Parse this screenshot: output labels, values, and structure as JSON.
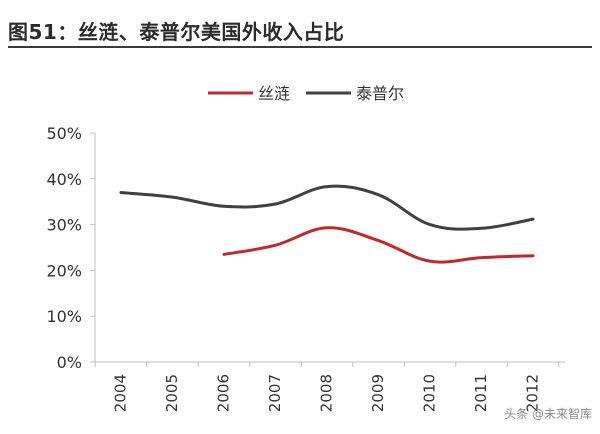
{
  "header": {
    "title": "图51：丝涟、泰普尔美国外收入占比"
  },
  "watermark": "头条 @未来智库",
  "chart_data": {
    "type": "line",
    "categories": [
      "2004",
      "2005",
      "2006",
      "2007",
      "2008",
      "2009",
      "2010",
      "2011",
      "2012"
    ],
    "ylim": [
      0,
      50
    ],
    "yticks": [
      "0%",
      "10%",
      "20%",
      "30%",
      "40%",
      "50%"
    ],
    "ytick_values": [
      0,
      10,
      20,
      30,
      40,
      50
    ],
    "legend_position": "top-center",
    "series": [
      {
        "name": "丝涟",
        "color": "#C0292B",
        "x": [
          2006.0,
          2007.0,
          2008.0,
          2009.0,
          2010.0,
          2011.0,
          2012.0
        ],
        "values": [
          23.5,
          25.5,
          29.3,
          26.5,
          22.0,
          22.8,
          23.2
        ]
      },
      {
        "name": "泰普尔",
        "color": "#404040",
        "x": [
          2004.0,
          2005.0,
          2006.0,
          2007.0,
          2008.0,
          2009.0,
          2010.0,
          2011.0,
          2012.0
        ],
        "values": [
          37.0,
          36.0,
          34.0,
          34.5,
          38.3,
          36.5,
          30.0,
          29.2,
          31.2
        ]
      }
    ]
  }
}
